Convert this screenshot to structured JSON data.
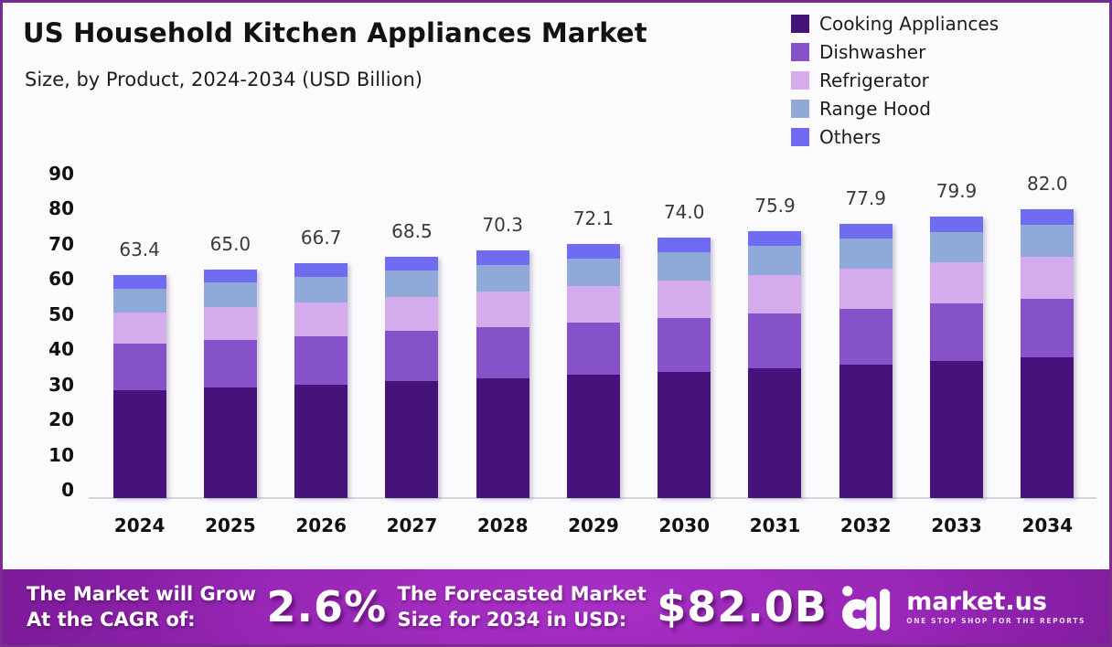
{
  "header": {
    "title": "US Household Kitchen Appliances Market",
    "subtitle": "Size, by Product, 2024-2034 (USD Billion)"
  },
  "chart_data": {
    "type": "bar",
    "stacked": true,
    "title": "US Household Kitchen Appliances Market Size, by Product, 2024-2034 (USD Billion)",
    "categories": [
      "2024",
      "2025",
      "2026",
      "2027",
      "2028",
      "2029",
      "2030",
      "2031",
      "2032",
      "2033",
      "2034"
    ],
    "series": [
      {
        "name": "Cooking Appliances",
        "color": "#45137a",
        "values": [
          30.7,
          31.5,
          32.3,
          33.3,
          34.1,
          35.0,
          35.9,
          36.9,
          37.9,
          38.9,
          39.9
        ]
      },
      {
        "name": "Dishwasher",
        "color": "#8552c9",
        "values": [
          13.2,
          13.5,
          13.8,
          14.2,
          14.5,
          14.9,
          15.3,
          15.6,
          16.0,
          16.4,
          16.8
        ]
      },
      {
        "name": "Refrigerator",
        "color": "#d5aceb",
        "values": [
          8.9,
          9.2,
          9.5,
          9.7,
          10.0,
          10.3,
          10.6,
          10.9,
          11.2,
          11.6,
          11.9
        ]
      },
      {
        "name": "Range Hood",
        "color": "#8fa9d8",
        "values": [
          6.8,
          7.0,
          7.2,
          7.4,
          7.7,
          7.9,
          8.1,
          8.4,
          8.6,
          8.8,
          9.1
        ]
      },
      {
        "name": "Others",
        "color": "#6f6cf2",
        "values": [
          3.8,
          3.8,
          3.9,
          3.9,
          4.0,
          4.0,
          4.1,
          4.1,
          4.2,
          4.2,
          4.3
        ]
      }
    ],
    "totals": [
      "63.4",
      "65.0",
      "66.7",
      "68.5",
      "70.3",
      "72.1",
      "74.0",
      "75.9",
      "77.9",
      "79.9",
      "82.0"
    ],
    "xlabel": "",
    "ylabel": "",
    "ylim": [
      0,
      90
    ],
    "yticks": [
      0,
      10,
      20,
      30,
      40,
      50,
      60,
      70,
      80,
      90
    ],
    "grid": false,
    "legend_position": "top-right"
  },
  "banner": {
    "cagr_label_line1": "The Market will Grow",
    "cagr_label_line2": "At the CAGR of:",
    "cagr_value": "2.6%",
    "forecast_label_line1": "The Forecasted Market",
    "forecast_label_line2": "Size for 2034 in USD:",
    "forecast_value": "$82.0B",
    "logo_text": "market.us",
    "logo_tagline": "ONE STOP SHOP FOR THE REPORTS"
  },
  "colors": {
    "page_border": "#7b2a8f",
    "background": "#fbfafc",
    "axis_line": "#d7d4dc",
    "text": "#111111",
    "banner_center": "#a930c6",
    "banner_edge": "#5c0f70"
  }
}
